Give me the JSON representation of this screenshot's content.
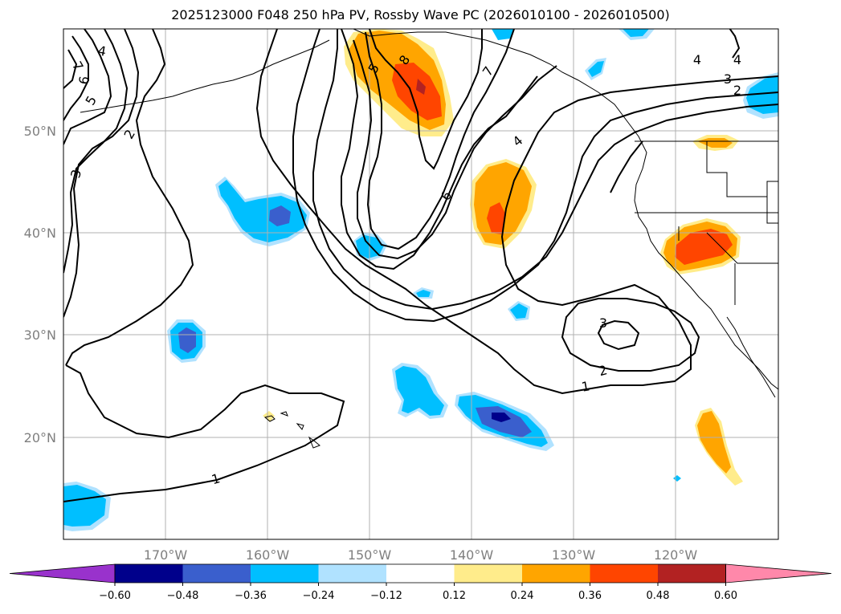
{
  "title": "2025123000 F048 250 hPa PV, Rossby Wave PC (2026010100 - 2026010500)",
  "lat_ticks": [
    "50°N",
    "40°N",
    "30°N",
    "20°N"
  ],
  "lon_ticks": [
    "170°W",
    "160°W",
    "150°W",
    "140°W",
    "130°W",
    "120°W"
  ],
  "contour_labels": [
    "4",
    "7",
    "6",
    "5",
    "2",
    "3",
    "5",
    "8",
    "7",
    "4",
    "6",
    "3",
    "2",
    "4",
    "4",
    "3",
    "2",
    "1",
    "1"
  ],
  "colorbar": {
    "ticks": [
      "−0.60",
      "−0.48",
      "−0.36",
      "−0.24",
      "−0.12",
      "0.12",
      "0.24",
      "0.36",
      "0.48",
      "0.60"
    ],
    "colors": [
      "#9932cc",
      "#00008b",
      "#3a5fcd",
      "#00bfff",
      "#b0e2ff",
      "#ffffff",
      "#ffec8b",
      "#ffa500",
      "#ff4500",
      "#b22222",
      "#ff88aa"
    ]
  },
  "chart_data": {
    "type": "map",
    "title": "2025123000 F048 250 hPa PV, Rossby Wave PC (2026010100 - 2026010500)",
    "projection": "lat-lon",
    "lon_range": [
      -180,
      -110
    ],
    "lat_range": [
      10,
      60
    ],
    "contour_field": "250 hPa PV",
    "contour_levels_labeled": [
      1,
      2,
      3,
      4,
      5,
      6,
      7,
      8
    ],
    "shaded_field": "Rossby Wave PC",
    "shading_levels": [
      -0.6,
      -0.48,
      -0.36,
      -0.24,
      -0.12,
      0.12,
      0.24,
      0.36,
      0.48,
      0.6
    ],
    "gridlines": true
  }
}
